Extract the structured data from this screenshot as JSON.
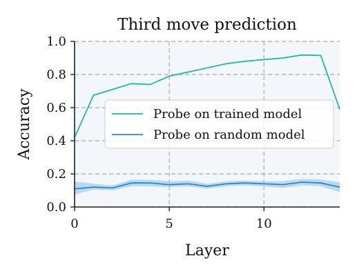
{
  "chart_data": {
    "type": "line",
    "title": "Third move prediction",
    "xlabel": "Layer",
    "ylabel": "Accuracy",
    "xlim": [
      0,
      14
    ],
    "ylim": [
      0,
      1
    ],
    "x_ticks": [
      0,
      5,
      10
    ],
    "y_ticks": [
      0.0,
      0.2,
      0.4,
      0.6,
      0.8,
      1.0
    ],
    "x_tick_labels": [
      "0",
      "5",
      "10"
    ],
    "y_tick_labels": [
      "0.0",
      "0.2",
      "0.4",
      "0.6",
      "0.8",
      "1.0"
    ],
    "grid": true,
    "legend_position": "center-right",
    "x": [
      0,
      1,
      2,
      3,
      4,
      5,
      6,
      7,
      8,
      9,
      10,
      11,
      12,
      13,
      14
    ],
    "series": [
      {
        "name": "Probe on trained model",
        "color": "#1abc9c",
        "values": [
          0.42,
          0.675,
          0.71,
          0.745,
          0.74,
          0.79,
          0.815,
          0.84,
          0.865,
          0.88,
          0.89,
          0.9,
          0.918,
          0.915,
          0.59
        ]
      },
      {
        "name": "Probe on random model",
        "color": "#2e86c1",
        "band_color": "#85c1e9",
        "values": [
          0.11,
          0.12,
          0.115,
          0.145,
          0.145,
          0.135,
          0.14,
          0.125,
          0.14,
          0.145,
          0.14,
          0.135,
          0.15,
          0.145,
          0.12
        ],
        "lower": [
          0.075,
          0.105,
          0.1,
          0.125,
          0.125,
          0.12,
          0.125,
          0.11,
          0.125,
          0.13,
          0.125,
          0.115,
          0.13,
          0.125,
          0.09
        ],
        "upper": [
          0.155,
          0.14,
          0.13,
          0.165,
          0.165,
          0.155,
          0.16,
          0.14,
          0.155,
          0.16,
          0.155,
          0.155,
          0.17,
          0.165,
          0.15
        ]
      }
    ]
  }
}
